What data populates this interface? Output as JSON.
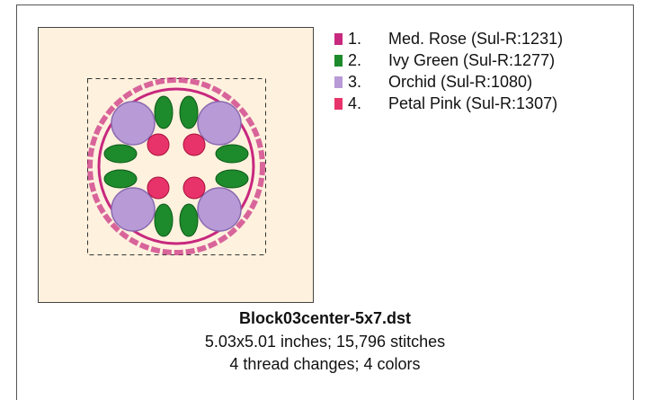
{
  "design": {
    "filename": "Block03center-5x7.dst",
    "size_line": "5.03x5.01 inches; 15,796 stitches",
    "changes_line": "4 thread changes; 4 colors",
    "threads": [
      {
        "number": "1.",
        "name": "Med. Rose (Sul-R:1231)",
        "color": "#c8287e"
      },
      {
        "number": "2.",
        "name": "Ivy Green (Sul-R:1277)",
        "color": "#1d8a2c"
      },
      {
        "number": "3.",
        "name": "Orchid (Sul-R:1080)",
        "color": "#b89ad6"
      },
      {
        "number": "4.",
        "name": "Petal Pink (Sul-R:1307)",
        "color": "#e8336a"
      }
    ]
  }
}
